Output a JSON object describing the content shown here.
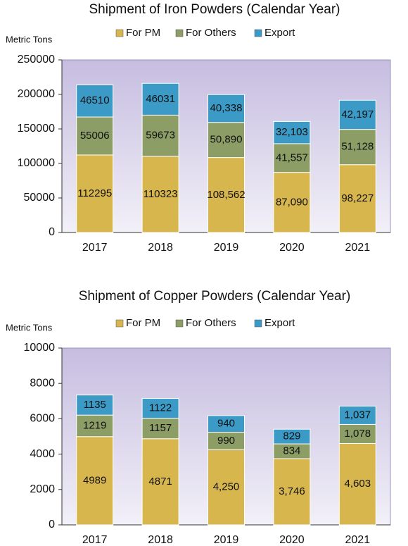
{
  "chart_data": [
    {
      "type": "bar",
      "stacked": true,
      "title": "Shipment of Iron Powders (Calendar Year)",
      "y_axis_label": "Metric  Tons",
      "categories": [
        "2017",
        "2018",
        "2019",
        "2020",
        "2021"
      ],
      "series": [
        {
          "name": "For PM",
          "color": "#d8b64e",
          "values": [
            112295,
            110323,
            108562,
            87090,
            98227
          ],
          "value_labels": [
            "112295",
            "110323",
            "108,562",
            "87,090",
            "98,227"
          ]
        },
        {
          "name": "For Others",
          "color": "#8c9d66",
          "values": [
            55006,
            59673,
            50890,
            41557,
            51128
          ],
          "value_labels": [
            "55006",
            "59673",
            "50,890",
            "41,557",
            "51,128"
          ]
        },
        {
          "name": "Export",
          "color": "#3b9ac6",
          "values": [
            46510,
            46031,
            40338,
            32103,
            42197
          ],
          "value_labels": [
            "46510",
            "46031",
            "40,338",
            "32,103",
            "42,197"
          ]
        }
      ],
      "ylim": [
        0,
        250000
      ],
      "yticks": [
        0,
        50000,
        100000,
        150000,
        200000,
        250000
      ]
    },
    {
      "type": "bar",
      "stacked": true,
      "title": "Shipment of Copper Powders (Calendar Year)",
      "y_axis_label": "Metric  Tons",
      "categories": [
        "2017",
        "2018",
        "2019",
        "2020",
        "2021"
      ],
      "series": [
        {
          "name": "For PM",
          "color": "#d8b64e",
          "values": [
            4989,
            4871,
            4250,
            3746,
            4603
          ],
          "value_labels": [
            "4989",
            "4871",
            "4,250",
            "3,746",
            "4,603"
          ]
        },
        {
          "name": "For Others",
          "color": "#8c9d66",
          "values": [
            1219,
            1157,
            990,
            834,
            1078
          ],
          "value_labels": [
            "1219",
            "1157",
            "990",
            "834",
            "1,078"
          ]
        },
        {
          "name": "Export",
          "color": "#3b9ac6",
          "values": [
            1135,
            1122,
            940,
            829,
            1037
          ],
          "value_labels": [
            "1135",
            "1122",
            "940",
            "829",
            "1,037"
          ]
        }
      ],
      "ylim": [
        0,
        10000
      ],
      "yticks": [
        0,
        2000,
        4000,
        6000,
        8000,
        10000
      ]
    }
  ]
}
